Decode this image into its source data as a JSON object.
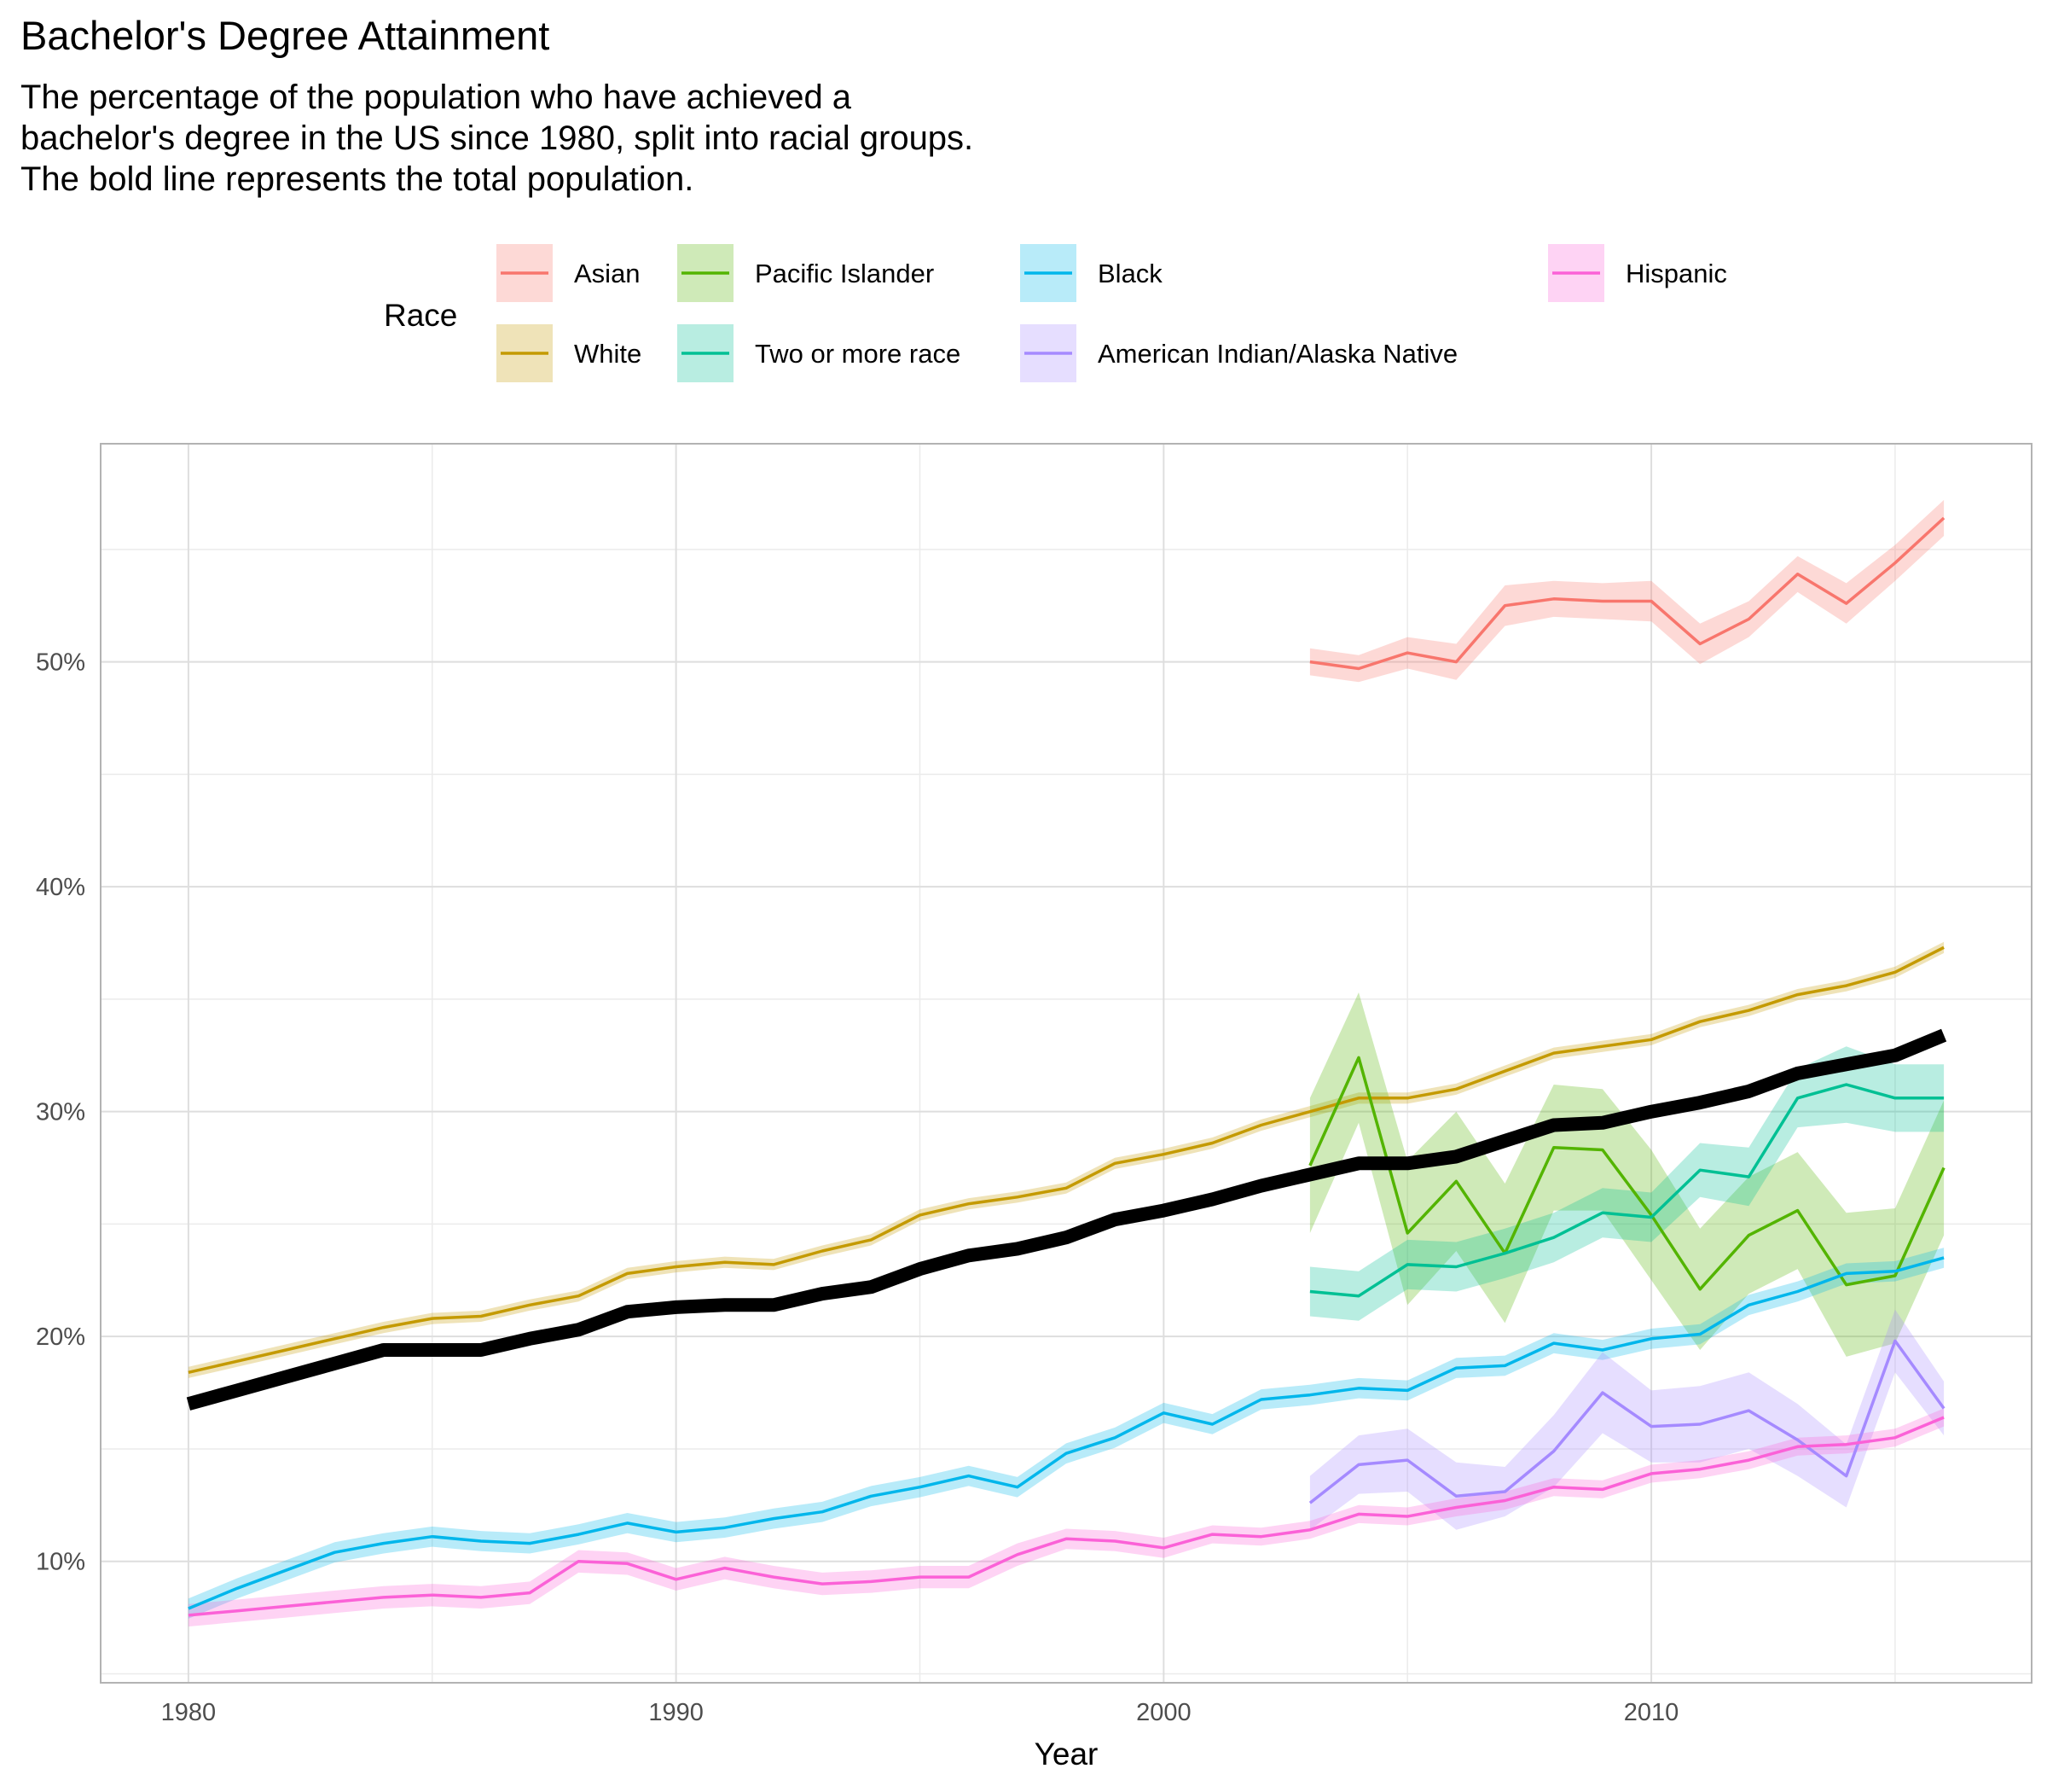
{
  "chart_data": {
    "type": "line",
    "title": "Bachelor's Degree Attainment",
    "subtitle_lines": [
      "The percentage of the population who have achieved a",
      "bachelor's degree in the US since 1980, split into racial groups.",
      "The bold line represents the total population."
    ],
    "xlabel": "Year",
    "ylabel": "",
    "xlim": [
      1978.2,
      2017.8
    ],
    "ylim": [
      4.6,
      59.7
    ],
    "x_ticks": [
      1980,
      1990,
      2000,
      2010
    ],
    "x_tick_labels": [
      "1980",
      "1990",
      "2000",
      "2010"
    ],
    "y_ticks": [
      10,
      20,
      30,
      40,
      50
    ],
    "y_tick_labels": [
      "10%",
      "20%",
      "30%",
      "40%",
      "50%"
    ],
    "grid": true,
    "legend": {
      "title": "Race",
      "position": "top",
      "entries": [
        "Asian",
        "White",
        "Pacific Islander",
        "Two or more race",
        "Black",
        "American Indian/Alaska Native",
        "Hispanic"
      ]
    },
    "series": [
      {
        "name": "Asian",
        "color": "#F8766D",
        "x": [
          2003,
          2004,
          2005,
          2006,
          2007,
          2008,
          2009,
          2010,
          2011,
          2012,
          2013,
          2014,
          2015,
          2016
        ],
        "y": [
          50.0,
          49.7,
          50.4,
          50.0,
          52.5,
          52.8,
          52.7,
          52.7,
          50.8,
          51.9,
          53.9,
          52.6,
          54.4,
          56.4
        ],
        "band": [
          0.6,
          0.6,
          0.7,
          0.8,
          0.9,
          0.8,
          0.8,
          0.9,
          0.9,
          0.8,
          0.8,
          0.9,
          0.8,
          0.8
        ]
      },
      {
        "name": "White",
        "color": "#C49A00",
        "x": [
          1980,
          1981,
          1982,
          1983,
          1984,
          1985,
          1986,
          1987,
          1988,
          1989,
          1990,
          1991,
          1992,
          1993,
          1994,
          1995,
          1996,
          1997,
          1998,
          1999,
          2000,
          2001,
          2002,
          2003,
          2004,
          2005,
          2006,
          2007,
          2008,
          2009,
          2010,
          2011,
          2012,
          2013,
          2014,
          2015,
          2016
        ],
        "y": [
          18.4,
          18.9,
          19.4,
          19.9,
          20.4,
          20.8,
          20.9,
          21.4,
          21.8,
          22.8,
          23.1,
          23.3,
          23.2,
          23.8,
          24.3,
          25.4,
          25.9,
          26.2,
          26.6,
          27.7,
          28.1,
          28.6,
          29.4,
          30.0,
          30.6,
          30.6,
          31.0,
          31.8,
          32.6,
          32.9,
          33.2,
          34.0,
          34.5,
          35.2,
          35.6,
          36.2,
          37.3
        ],
        "band": [
          0.25,
          0.25,
          0.25,
          0.25,
          0.25,
          0.25,
          0.25,
          0.25,
          0.25,
          0.25,
          0.25,
          0.25,
          0.25,
          0.25,
          0.25,
          0.25,
          0.25,
          0.25,
          0.25,
          0.25,
          0.25,
          0.25,
          0.25,
          0.25,
          0.25,
          0.25,
          0.25,
          0.25,
          0.25,
          0.25,
          0.25,
          0.25,
          0.25,
          0.25,
          0.25,
          0.25,
          0.25
        ]
      },
      {
        "name": "Pacific Islander",
        "color": "#53B400",
        "x": [
          2003,
          2004,
          2005,
          2006,
          2007,
          2008,
          2009,
          2010,
          2011,
          2012,
          2013,
          2014,
          2015,
          2016
        ],
        "y": [
          27.6,
          32.4,
          24.6,
          26.9,
          23.7,
          28.4,
          28.3,
          25.4,
          22.1,
          24.5,
          25.6,
          22.3,
          22.7,
          27.5
        ],
        "band": [
          3.0,
          2.9,
          3.2,
          3.1,
          3.1,
          2.8,
          2.7,
          2.9,
          2.7,
          2.6,
          2.6,
          3.2,
          3.0,
          3.0
        ]
      },
      {
        "name": "Two or more race",
        "color": "#00C094",
        "x": [
          2003,
          2004,
          2005,
          2006,
          2007,
          2008,
          2009,
          2010,
          2011,
          2012,
          2013,
          2014,
          2015,
          2016
        ],
        "y": [
          22.0,
          21.8,
          23.2,
          23.1,
          23.7,
          24.4,
          25.5,
          25.3,
          27.4,
          27.1,
          30.6,
          31.2,
          30.6,
          30.6
        ],
        "band": [
          1.1,
          1.1,
          1.1,
          1.1,
          1.1,
          1.1,
          1.1,
          1.1,
          1.2,
          1.3,
          1.3,
          1.7,
          1.5,
          1.5
        ]
      },
      {
        "name": "Black",
        "color": "#00B6EB",
        "x": [
          1980,
          1981,
          1982,
          1983,
          1984,
          1985,
          1986,
          1987,
          1988,
          1989,
          1990,
          1991,
          1992,
          1993,
          1994,
          1995,
          1996,
          1997,
          1998,
          1999,
          2000,
          2001,
          2002,
          2003,
          2004,
          2005,
          2006,
          2007,
          2008,
          2009,
          2010,
          2011,
          2012,
          2013,
          2014,
          2015,
          2016
        ],
        "y": [
          7.9,
          8.8,
          9.6,
          10.4,
          10.8,
          11.1,
          10.9,
          10.8,
          11.2,
          11.7,
          11.3,
          11.5,
          11.9,
          12.2,
          12.9,
          13.3,
          13.8,
          13.3,
          14.8,
          15.5,
          16.6,
          16.1,
          17.2,
          17.4,
          17.7,
          17.6,
          18.6,
          18.7,
          19.7,
          19.4,
          19.9,
          20.1,
          21.4,
          22.0,
          22.8,
          22.9,
          23.5
        ],
        "band": [
          0.45,
          0.45,
          0.45,
          0.45,
          0.45,
          0.45,
          0.45,
          0.45,
          0.45,
          0.45,
          0.45,
          0.45,
          0.45,
          0.45,
          0.45,
          0.45,
          0.45,
          0.45,
          0.45,
          0.45,
          0.45,
          0.45,
          0.45,
          0.45,
          0.45,
          0.45,
          0.45,
          0.45,
          0.45,
          0.45,
          0.45,
          0.45,
          0.45,
          0.45,
          0.45,
          0.45,
          0.45
        ]
      },
      {
        "name": "American Indian/Alaska Native",
        "color": "#A58AFF",
        "x": [
          2003,
          2004,
          2005,
          2006,
          2007,
          2008,
          2009,
          2010,
          2011,
          2012,
          2013,
          2014,
          2015,
          2016
        ],
        "y": [
          12.6,
          14.3,
          14.5,
          12.9,
          13.1,
          14.9,
          17.5,
          16.0,
          16.1,
          16.7,
          15.4,
          13.8,
          19.8,
          16.8
        ],
        "band": [
          1.2,
          1.3,
          1.4,
          1.5,
          1.1,
          1.6,
          1.8,
          1.6,
          1.7,
          1.7,
          1.6,
          1.4,
          1.4,
          1.2
        ]
      },
      {
        "name": "Hispanic",
        "color": "#FB61D7",
        "x": [
          1980,
          1981,
          1982,
          1983,
          1984,
          1985,
          1986,
          1987,
          1988,
          1989,
          1990,
          1991,
          1992,
          1993,
          1994,
          1995,
          1996,
          1997,
          1998,
          1999,
          2000,
          2001,
          2002,
          2003,
          2004,
          2005,
          2006,
          2007,
          2008,
          2009,
          2010,
          2011,
          2012,
          2013,
          2014,
          2015,
          2016
        ],
        "y": [
          7.6,
          7.8,
          8.0,
          8.2,
          8.4,
          8.5,
          8.4,
          8.6,
          10.0,
          9.9,
          9.2,
          9.7,
          9.3,
          9.0,
          9.1,
          9.3,
          9.3,
          10.3,
          11.0,
          10.9,
          10.6,
          11.2,
          11.1,
          11.4,
          12.1,
          12.0,
          12.4,
          12.7,
          13.3,
          13.2,
          13.9,
          14.1,
          14.5,
          15.1,
          15.2,
          15.5,
          16.4
        ],
        "band": [
          0.5,
          0.5,
          0.5,
          0.5,
          0.5,
          0.5,
          0.5,
          0.5,
          0.5,
          0.5,
          0.5,
          0.5,
          0.5,
          0.5,
          0.5,
          0.5,
          0.5,
          0.5,
          0.45,
          0.45,
          0.45,
          0.4,
          0.4,
          0.4,
          0.4,
          0.4,
          0.4,
          0.4,
          0.4,
          0.4,
          0.4,
          0.4,
          0.4,
          0.4,
          0.4,
          0.4,
          0.4
        ]
      },
      {
        "name": "Total",
        "color": "#000000",
        "bold": true,
        "x": [
          1980,
          1981,
          1982,
          1983,
          1984,
          1985,
          1986,
          1987,
          1988,
          1989,
          1990,
          1991,
          1992,
          1993,
          1994,
          1995,
          1996,
          1997,
          1998,
          1999,
          2000,
          2001,
          2002,
          2003,
          2004,
          2005,
          2006,
          2007,
          2008,
          2009,
          2010,
          2011,
          2012,
          2013,
          2014,
          2015,
          2016
        ],
        "y": [
          17.0,
          17.6,
          18.2,
          18.8,
          19.4,
          19.4,
          19.4,
          19.9,
          20.3,
          21.1,
          21.3,
          21.4,
          21.4,
          21.9,
          22.2,
          23.0,
          23.6,
          23.9,
          24.4,
          25.2,
          25.6,
          26.1,
          26.7,
          27.2,
          27.7,
          27.7,
          28.0,
          28.7,
          29.4,
          29.5,
          30.0,
          30.4,
          30.9,
          31.7,
          32.1,
          32.5,
          33.4
        ],
        "band": []
      }
    ]
  }
}
